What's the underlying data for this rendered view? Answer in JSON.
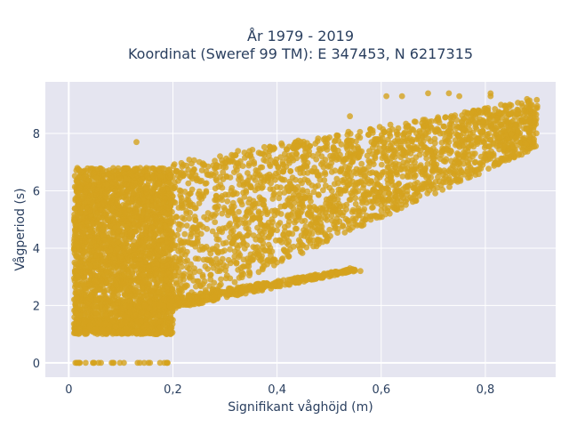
{
  "chart_data": {
    "type": "scatter",
    "title_line1": "År 1979 - 2019",
    "title_line2": "Koordinat (Sweref 99 TM): E 347453, N 6217315",
    "xlabel": "Signifikant våghöjd (m)",
    "ylabel": "Vågperiod (s)",
    "xlim": [
      -0.045,
      0.935
    ],
    "ylim": [
      -0.5,
      9.8
    ],
    "x_ticks": [
      0,
      0.2,
      0.4,
      0.6,
      0.8
    ],
    "x_tick_labels": [
      "0",
      "0,2",
      "0,4",
      "0,6",
      "0,8"
    ],
    "y_ticks": [
      0,
      2,
      4,
      6,
      8
    ],
    "y_tick_labels": [
      "0",
      "2",
      "4",
      "6",
      "8"
    ],
    "grid": true,
    "legend": "none",
    "marker_color": "#d4a21e",
    "plot_bg": "#e5e5f0",
    "series": [
      {
        "bands": [
          {
            "x_range": [
              0.01,
              0.2
            ],
            "y_low": 1.5,
            "y_high": 6.8,
            "density": "very high"
          },
          {
            "x_range": [
              0.2,
              0.9
            ],
            "y_low_start": 1.8,
            "y_low_end": 7.5,
            "y_high_start": 7.0,
            "y_high_end": 9.2,
            "density": "high"
          },
          {
            "x_range": [
              0.1,
              0.55
            ],
            "y_low_start": 1.5,
            "y_low_end": 3.2,
            "y_high_start": 2.0,
            "y_high_end": 3.3,
            "density": "medium"
          },
          {
            "x_range": [
              0.01,
              0.2
            ],
            "y_low": 1.0,
            "y_high": 1.5,
            "density": "medium"
          },
          {
            "x_range": [
              0.01,
              0.2
            ],
            "y_value": 0,
            "density": "low"
          }
        ],
        "outliers": [
          [
            0.13,
            7.7
          ],
          [
            0.26,
            6.9
          ],
          [
            0.43,
            7.5
          ],
          [
            0.54,
            8.6
          ],
          [
            0.61,
            9.3
          ],
          [
            0.64,
            9.3
          ],
          [
            0.69,
            9.4
          ],
          [
            0.73,
            9.4
          ],
          [
            0.75,
            9.3
          ],
          [
            0.81,
            9.3
          ],
          [
            0.81,
            9.4
          ],
          [
            0.83,
            9.0
          ],
          [
            0.88,
            9.2
          ],
          [
            0.56,
            3.2
          ],
          [
            0.02,
            0
          ],
          [
            0.19,
            0
          ],
          [
            0.09,
            6.0
          ],
          [
            0.54,
            3.3
          ],
          [
            0.28,
            2.3
          ],
          [
            0.4,
            3.5
          ]
        ]
      }
    ]
  }
}
